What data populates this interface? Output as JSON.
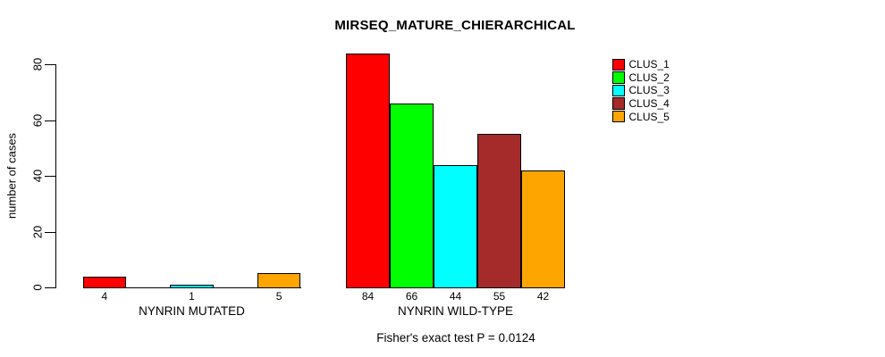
{
  "title": "MIRSEQ_MATURE_CHIERARCHICAL",
  "caption": "Fisher's exact test P = 0.0124",
  "y_axis": {
    "label": "number of cases",
    "ticks": [
      "0",
      "20",
      "40",
      "60",
      "80"
    ]
  },
  "legend": {
    "position": "top-right",
    "items": [
      {
        "label": "CLUS_1",
        "color": "#FF0000"
      },
      {
        "label": "CLUS_2",
        "color": "#00FF00"
      },
      {
        "label": "CLUS_3",
        "color": "#00FFFF"
      },
      {
        "label": "CLUS_4",
        "color": "#A52A2A"
      },
      {
        "label": "CLUS_5",
        "color": "#FFA500"
      }
    ]
  },
  "chart_data": {
    "type": "bar",
    "title": "MIRSEQ_MATURE_CHIERARCHICAL",
    "xlabel": "",
    "ylabel": "number of cases",
    "ylim": [
      0,
      84
    ],
    "axis_ticks": [
      0,
      20,
      40,
      60,
      80
    ],
    "grid": false,
    "legend_position": "top-right",
    "categories": [
      "NYNRIN MUTATED",
      "NYNRIN WILD-TYPE"
    ],
    "series": [
      {
        "name": "CLUS_1",
        "color": "#FF0000",
        "values": [
          4,
          84
        ]
      },
      {
        "name": "CLUS_2",
        "color": "#00FF00",
        "values": [
          0,
          66
        ]
      },
      {
        "name": "CLUS_3",
        "color": "#00FFFF",
        "values": [
          1,
          44
        ]
      },
      {
        "name": "CLUS_4",
        "color": "#A52A2A",
        "values": [
          0,
          55
        ]
      },
      {
        "name": "CLUS_5",
        "color": "#FFA500",
        "values": [
          5,
          42
        ]
      }
    ],
    "bar_value_labels": [
      [
        "4",
        "",
        "1",
        "",
        "5"
      ],
      [
        "84",
        "66",
        "44",
        "55",
        "42"
      ]
    ],
    "annotation": "Fisher's exact test P = 0.0124"
  }
}
